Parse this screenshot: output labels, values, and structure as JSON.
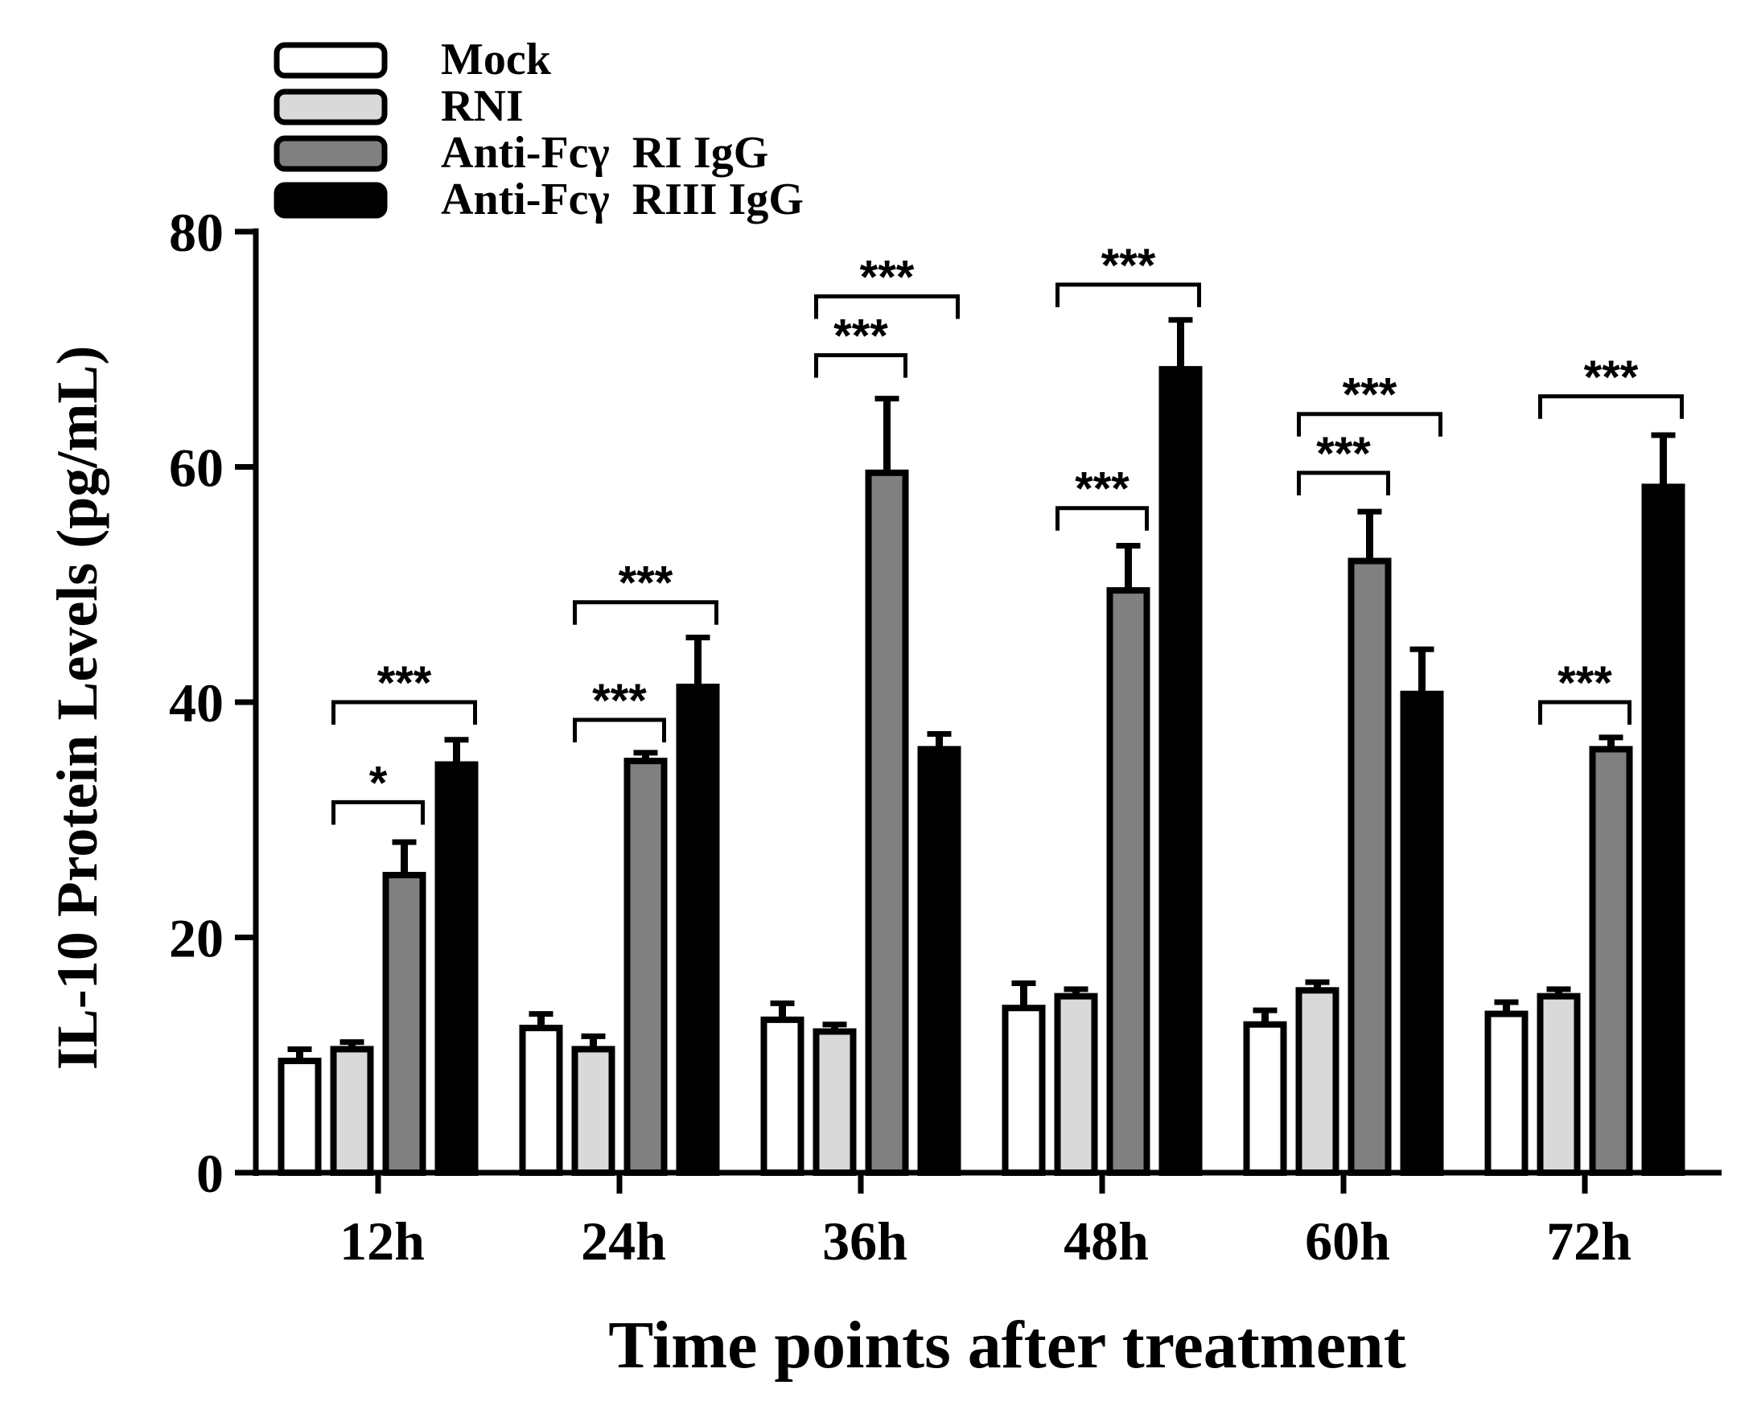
{
  "chart_data": {
    "type": "bar",
    "ylabel": "IL-10 Protein Levels (pg/mL)",
    "xlabel": "Time points after treatment",
    "ylim": [
      0,
      80
    ],
    "yticks": [
      0,
      20,
      40,
      60,
      80
    ],
    "categories": [
      "12h",
      "24h",
      "36h",
      "48h",
      "60h",
      "72h"
    ],
    "legend_position": "top-left",
    "series": [
      {
        "name": "Mock",
        "color": "#ffffff",
        "values": [
          9.5,
          12.3,
          13.0,
          14.0,
          12.6,
          13.5
        ],
        "errors": [
          1.0,
          1.2,
          1.4,
          2.1,
          1.2,
          1.0
        ]
      },
      {
        "name": "RNI",
        "color": "#d9d9d9",
        "values": [
          10.5,
          10.5,
          12.0,
          15.0,
          15.5,
          15.0
        ],
        "errors": [
          0.6,
          1.1,
          0.6,
          0.6,
          0.7,
          0.6
        ]
      },
      {
        "name": "Anti-Fcγ  RI IgG",
        "color": "#808080",
        "values": [
          25.3,
          35.0,
          59.5,
          49.5,
          52.0,
          36.0
        ],
        "errors": [
          2.8,
          0.7,
          6.3,
          3.8,
          4.2,
          1.0
        ]
      },
      {
        "name": "Anti-Fcγ  RIII IgG",
        "color": "#000000",
        "values": [
          34.7,
          41.3,
          36.0,
          68.3,
          40.7,
          58.3
        ],
        "errors": [
          2.1,
          4.2,
          1.3,
          4.2,
          3.8,
          4.4
        ]
      }
    ],
    "significance": [
      {
        "category": "12h",
        "from": 1,
        "to": 2,
        "label": "*",
        "y": 31.5
      },
      {
        "category": "12h",
        "from": 1,
        "to": 3,
        "label": "***",
        "y": 40.0
      },
      {
        "category": "24h",
        "from": 1,
        "to": 2,
        "label": "***",
        "y": 38.5
      },
      {
        "category": "24h",
        "from": 1,
        "to": 3,
        "label": "***",
        "y": 48.5
      },
      {
        "category": "36h",
        "from": 1,
        "to": 2,
        "label": "***",
        "y": 69.5
      },
      {
        "category": "36h",
        "from": 1,
        "to": 3,
        "label": "***",
        "y": 74.5
      },
      {
        "category": "48h",
        "from": 1,
        "to": 2,
        "label": "***",
        "y": 56.5
      },
      {
        "category": "48h",
        "from": 1,
        "to": 3,
        "label": "***",
        "y": 75.5
      },
      {
        "category": "60h",
        "from": 1,
        "to": 2,
        "label": "***",
        "y": 59.5
      },
      {
        "category": "60h",
        "from": 1,
        "to": 3,
        "label": "***",
        "y": 64.5
      },
      {
        "category": "72h",
        "from": 1,
        "to": 2,
        "label": "***",
        "y": 40.0
      },
      {
        "category": "72h",
        "from": 1,
        "to": 3,
        "label": "***",
        "y": 66.0
      }
    ]
  }
}
